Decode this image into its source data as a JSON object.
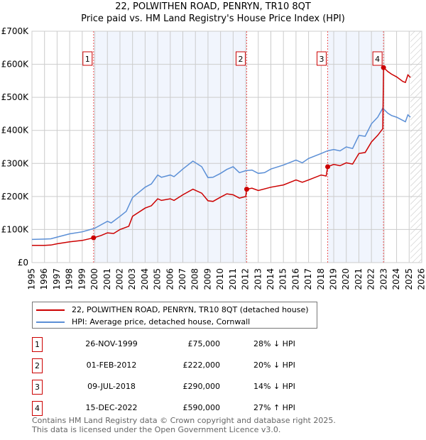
{
  "header": {
    "title": "22, POLWITHEN ROAD, PENRYN, TR10 8QT",
    "subtitle": "Price paid vs. HM Land Registry's House Price Index (HPI)"
  },
  "chart_data": {
    "type": "line",
    "title": "22, POLWITHEN ROAD, PENRYN, TR10 8QT",
    "subtitle": "Price paid vs. HM Land Registry's House Price Index (HPI)",
    "xlim": [
      1995,
      2026
    ],
    "ylim": [
      0,
      700000
    ],
    "xticks": [
      "1995",
      "1996",
      "1997",
      "1998",
      "1999",
      "2000",
      "2001",
      "2002",
      "2003",
      "2004",
      "2005",
      "2006",
      "2007",
      "2008",
      "2009",
      "2010",
      "2011",
      "2012",
      "2013",
      "2014",
      "2015",
      "2016",
      "2017",
      "2018",
      "2019",
      "2020",
      "2021",
      "2022",
      "2023",
      "2024",
      "2025",
      "2026"
    ],
    "yticks": [
      {
        "v": 0,
        "label": "£0"
      },
      {
        "v": 100000,
        "label": "£100K"
      },
      {
        "v": 200000,
        "label": "£200K"
      },
      {
        "v": 300000,
        "label": "£300K"
      },
      {
        "v": 400000,
        "label": "£400K"
      },
      {
        "v": 500000,
        "label": "£500K"
      },
      {
        "v": 600000,
        "label": "£600K"
      },
      {
        "v": 700000,
        "label": "£700K"
      }
    ],
    "grid": true,
    "series": [
      {
        "name": "22, POLWITHEN ROAD, PENRYN, TR10 8QT (detached house)",
        "color": "#cc0000",
        "x": [
          1995,
          1996,
          1996.5,
          1997,
          1998,
          1999,
          1999.9,
          2000.5,
          2001,
          2001.5,
          2002,
          2002.7,
          2003,
          2004,
          2004.5,
          2005,
          2005.3,
          2006,
          2006.3,
          2007,
          2007.8,
          2008.5,
          2009,
          2009.4,
          2010,
          2010.5,
          2011,
          2011.5,
          2012,
          2012.08,
          2012.5,
          2013,
          2014,
          2015,
          2016,
          2016.5,
          2017,
          2018,
          2018.4,
          2018.52,
          2019,
          2019.5,
          2020,
          2020.5,
          2021,
          2021.5,
          2022,
          2022.5,
          2022.9,
          2022.96,
          2023.3,
          2023.6,
          2024,
          2024.5,
          2024.7,
          2024.9,
          2025.1
        ],
        "y": [
          52000,
          52000,
          53000,
          57000,
          63000,
          67000,
          75000,
          82000,
          90000,
          88000,
          100000,
          110000,
          140000,
          165000,
          172000,
          193000,
          188000,
          193000,
          188000,
          205000,
          222000,
          210000,
          187000,
          185000,
          198000,
          208000,
          205000,
          195000,
          200000,
          222000,
          225000,
          218000,
          228000,
          235000,
          250000,
          243000,
          250000,
          265000,
          262000,
          290000,
          297000,
          293000,
          302000,
          298000,
          330000,
          333000,
          365000,
          385000,
          405000,
          590000,
          578000,
          570000,
          562000,
          548000,
          545000,
          568000,
          560000
        ]
      },
      {
        "name": "HPI: Average price, detached house, Cornwall",
        "color": "#5b8fd6",
        "x": [
          1995,
          1996,
          1996.5,
          1997,
          1998,
          1999,
          2000,
          2001,
          2001.3,
          2002,
          2002.5,
          2003,
          2004,
          2004.5,
          2005,
          2005.3,
          2006,
          2006.3,
          2007,
          2007.8,
          2008.5,
          2009,
          2009.4,
          2010,
          2010.5,
          2011,
          2011.5,
          2012,
          2012.5,
          2013,
          2013.5,
          2014,
          2015,
          2016,
          2016.5,
          2017,
          2018,
          2018.5,
          2019,
          2019.5,
          2020,
          2020.5,
          2021,
          2021.5,
          2022,
          2022.5,
          2022.9,
          2023.3,
          2023.6,
          2024,
          2024.5,
          2024.7,
          2024.9,
          2025.1
        ],
        "y": [
          70000,
          71000,
          72000,
          77000,
          87000,
          93000,
          104000,
          125000,
          120000,
          140000,
          155000,
          197000,
          228000,
          238000,
          265000,
          258000,
          265000,
          260000,
          283000,
          307000,
          290000,
          257000,
          258000,
          270000,
          282000,
          290000,
          272000,
          278000,
          280000,
          270000,
          272000,
          283000,
          295000,
          310000,
          302000,
          315000,
          330000,
          338000,
          342000,
          338000,
          350000,
          345000,
          385000,
          382000,
          420000,
          440000,
          467000,
          452000,
          445000,
          440000,
          430000,
          426000,
          447000,
          440000
        ]
      }
    ],
    "sales": [
      {
        "label": "1",
        "x": 1999.9,
        "y": 75000
      },
      {
        "label": "2",
        "x": 2012.08,
        "y": 222000
      },
      {
        "label": "3",
        "x": 2018.52,
        "y": 290000
      },
      {
        "label": "4",
        "x": 2022.96,
        "y": 590000
      }
    ],
    "shaded_ranges": [
      [
        1999.9,
        2012.08
      ],
      [
        2018.52,
        2022.96
      ]
    ],
    "forecast_from": 2025.1
  },
  "legend": [
    {
      "label": "22, POLWITHEN ROAD, PENRYN, TR10 8QT (detached house)",
      "color": "#cc0000"
    },
    {
      "label": "HPI: Average price, detached house, Cornwall",
      "color": "#5b8fd6"
    }
  ],
  "table": [
    {
      "num": "1",
      "date": "26-NOV-1999",
      "price": "£75,000",
      "hpi": "28% ↓ HPI"
    },
    {
      "num": "2",
      "date": "01-FEB-2012",
      "price": "£222,000",
      "hpi": "20% ↓ HPI"
    },
    {
      "num": "3",
      "date": "09-JUL-2018",
      "price": "£290,000",
      "hpi": "14% ↓ HPI"
    },
    {
      "num": "4",
      "date": "15-DEC-2022",
      "price": "£590,000",
      "hpi": "27% ↑ HPI"
    }
  ],
  "footer": {
    "line1": "Contains HM Land Registry data © Crown copyright and database right 2025.",
    "line2": "This data is licensed under the Open Government Licence v3.0."
  }
}
